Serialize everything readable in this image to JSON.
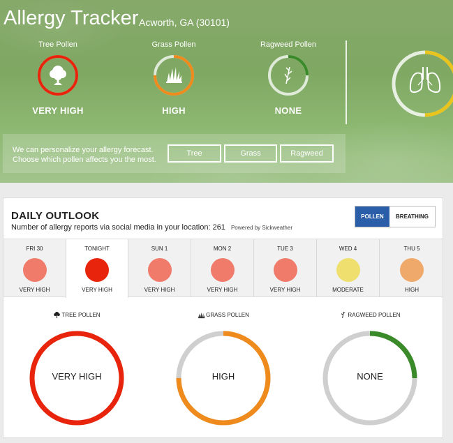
{
  "header": {
    "title": "Allergy Tracker",
    "location": "Acworth, GA (30101)"
  },
  "current": [
    {
      "name": "Tree Pollen",
      "level": "VERY HIGH",
      "fraction": 1.0,
      "color": "#e8250c",
      "icon": "tree-icon"
    },
    {
      "name": "Grass Pollen",
      "level": "HIGH",
      "fraction": 0.75,
      "color": "#ef8a1c",
      "icon": "grass-icon"
    },
    {
      "name": "Ragweed Pollen",
      "level": "NONE",
      "fraction": 0.25,
      "color": "#3a8a2a",
      "icon": "ragweed-icon"
    }
  ],
  "breathing": {
    "fraction": 0.5,
    "color": "#e8c41c",
    "icon": "lungs-icon"
  },
  "personalize": {
    "text": "We can personalize your allergy forecast. Choose which pollen affects you the most.",
    "buttons": [
      "Tree",
      "Grass",
      "Ragweed"
    ]
  },
  "outlook": {
    "title": "DAILY OUTLOOK",
    "subtitle": "Number of allergy reports via social media in your location: 261",
    "powered": "Powered by Sickweather",
    "toggle": {
      "pollen": "POLLEN",
      "breathing": "BREATHING",
      "selected": "POLLEN"
    },
    "days": [
      {
        "label": "FRI 30",
        "level": "VERY HIGH",
        "color": "#f07b6b"
      },
      {
        "label": "TONIGHT",
        "level": "VERY HIGH",
        "color": "#e8250c",
        "active": true
      },
      {
        "label": "SUN 1",
        "level": "VERY HIGH",
        "color": "#f07b6b"
      },
      {
        "label": "MON 2",
        "level": "VERY HIGH",
        "color": "#f07b6b"
      },
      {
        "label": "TUE 3",
        "level": "VERY HIGH",
        "color": "#f07b6b"
      },
      {
        "label": "WED 4",
        "level": "MODERATE",
        "color": "#efdf6e"
      },
      {
        "label": "THU 5",
        "level": "HIGH",
        "color": "#efa96b"
      }
    ],
    "gauges": [
      {
        "label": "TREE POLLEN",
        "level": "VERY HIGH",
        "fraction": 1.0,
        "color": "#e8250c",
        "icon": "tree-icon"
      },
      {
        "label": "GRASS POLLEN",
        "level": "HIGH",
        "fraction": 0.75,
        "color": "#ef8a1c",
        "icon": "grass-icon"
      },
      {
        "label": "RAGWEED POLLEN",
        "level": "NONE",
        "fraction": 0.25,
        "color": "#3a8a2a",
        "icon": "ragweed-icon"
      }
    ]
  }
}
